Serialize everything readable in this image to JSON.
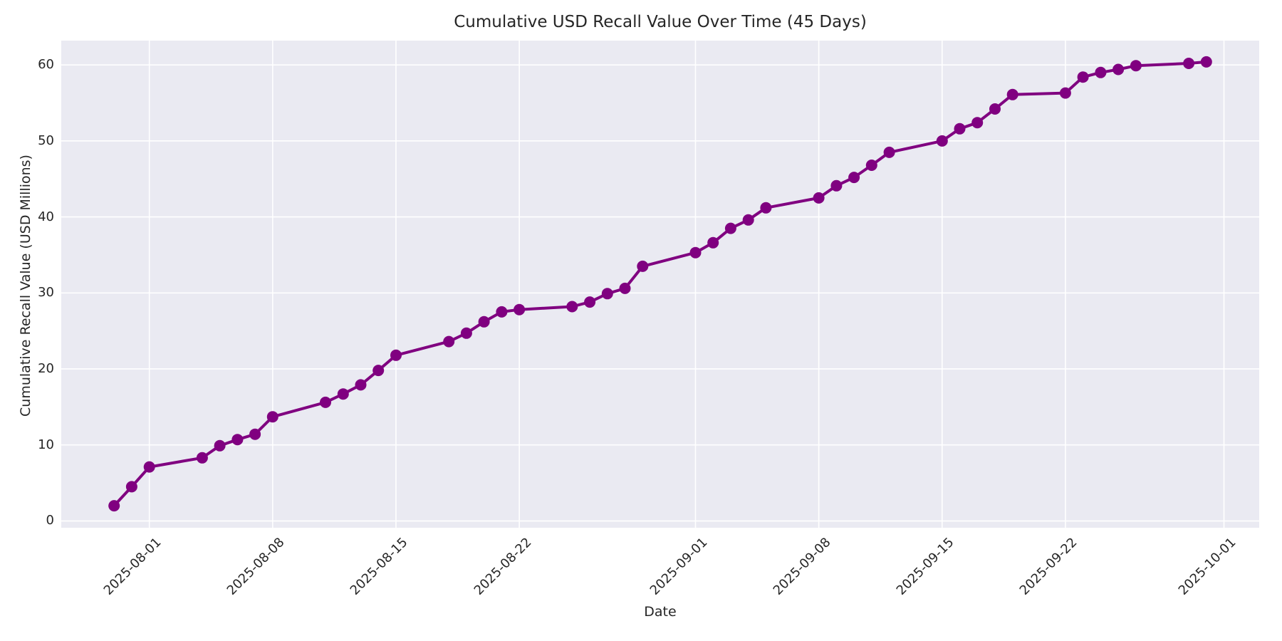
{
  "colors": {
    "line": "#800080",
    "plot_background": "#EAEAF2",
    "grid": "#FFFFFF",
    "text": "#262626",
    "page_background": "#FFFFFF"
  },
  "chart_data": {
    "type": "line",
    "title": "Cumulative USD Recall Value Over Time (45 Days)",
    "xlabel": "Date",
    "ylabel": "Cumulative Recall Value (USD Millions)",
    "legend": "none",
    "grid": true,
    "marker": "circle",
    "x": [
      "2025-07-30",
      "2025-07-31",
      "2025-08-01",
      "2025-08-04",
      "2025-08-05",
      "2025-08-06",
      "2025-08-07",
      "2025-08-08",
      "2025-08-11",
      "2025-08-12",
      "2025-08-13",
      "2025-08-14",
      "2025-08-15",
      "2025-08-18",
      "2025-08-19",
      "2025-08-20",
      "2025-08-21",
      "2025-08-22",
      "2025-08-25",
      "2025-08-26",
      "2025-08-27",
      "2025-08-28",
      "2025-08-29",
      "2025-09-01",
      "2025-09-02",
      "2025-09-03",
      "2025-09-04",
      "2025-09-05",
      "2025-09-08",
      "2025-09-09",
      "2025-09-10",
      "2025-09-11",
      "2025-09-12",
      "2025-09-15",
      "2025-09-16",
      "2025-09-17",
      "2025-09-18",
      "2025-09-19",
      "2025-09-22",
      "2025-09-23",
      "2025-09-24",
      "2025-09-25",
      "2025-09-26",
      "2025-09-29",
      "2025-09-30"
    ],
    "values": [
      2.0,
      4.5,
      7.1,
      8.3,
      9.9,
      10.7,
      11.4,
      13.7,
      15.6,
      16.7,
      17.9,
      19.8,
      21.8,
      23.6,
      24.7,
      26.2,
      27.5,
      27.8,
      28.2,
      28.8,
      29.9,
      30.6,
      33.5,
      35.3,
      36.6,
      38.5,
      39.6,
      41.2,
      42.5,
      44.1,
      45.2,
      46.8,
      48.5,
      50.0,
      51.6,
      52.4,
      54.2,
      56.1,
      56.3,
      58.4,
      59.0,
      59.4,
      59.9,
      60.2,
      60.4
    ],
    "xticks": [
      "2025-08-01",
      "2025-08-08",
      "2025-08-15",
      "2025-08-22",
      "2025-09-01",
      "2025-09-08",
      "2025-09-15",
      "2025-09-22",
      "2025-10-01"
    ],
    "yticks": [
      0,
      10,
      20,
      30,
      40,
      50,
      60
    ],
    "xlim": [
      "2025-07-27",
      "2025-10-03"
    ],
    "ylim": [
      -0.9,
      63.2
    ],
    "x_tick_rotation_deg": 45
  }
}
